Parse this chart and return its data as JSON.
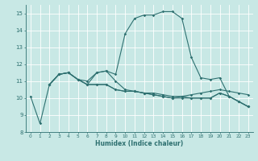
{
  "title": "",
  "xlabel": "Humidex (Indice chaleur)",
  "xlim": [
    -0.5,
    23.5
  ],
  "ylim": [
    8,
    15.5
  ],
  "yticks": [
    8,
    9,
    10,
    11,
    12,
    13,
    14,
    15
  ],
  "xticks": [
    0,
    1,
    2,
    3,
    4,
    5,
    6,
    7,
    8,
    9,
    10,
    11,
    12,
    13,
    14,
    15,
    16,
    17,
    18,
    19,
    20,
    21,
    22,
    23
  ],
  "bg_color": "#c8e8e5",
  "line_color": "#2e7070",
  "grid_color": "#ffffff",
  "series": [
    {
      "x": [
        0,
        1,
        2,
        3,
        4,
        5,
        6,
        7,
        8,
        9,
        10,
        11,
        12,
        13,
        14,
        15,
        16,
        17,
        18,
        19,
        20,
        21,
        22,
        23
      ],
      "y": [
        10.1,
        8.5,
        10.8,
        11.4,
        11.5,
        11.1,
        11.0,
        11.5,
        11.6,
        11.0,
        10.5,
        10.4,
        10.3,
        10.2,
        10.1,
        10.0,
        10.0,
        10.0,
        10.0,
        10.0,
        10.3,
        10.1,
        9.8,
        9.5
      ]
    },
    {
      "x": [
        2,
        3,
        4,
        5,
        6,
        7,
        8,
        9,
        10,
        11,
        12,
        13,
        14,
        15,
        16,
        17,
        18,
        19,
        20,
        21,
        22,
        23
      ],
      "y": [
        10.8,
        11.4,
        11.5,
        11.1,
        10.8,
        11.5,
        11.6,
        11.4,
        13.8,
        14.7,
        14.9,
        14.9,
        15.1,
        15.1,
        14.7,
        12.4,
        11.2,
        11.1,
        11.2,
        10.1,
        9.8,
        9.5
      ]
    },
    {
      "x": [
        2,
        3,
        4,
        5,
        6,
        7,
        8,
        9,
        10,
        11,
        12,
        13,
        14,
        15,
        16,
        17,
        18,
        19,
        20,
        21,
        22,
        23
      ],
      "y": [
        10.8,
        11.4,
        11.5,
        11.1,
        10.8,
        10.8,
        10.8,
        10.5,
        10.4,
        10.4,
        10.3,
        10.3,
        10.2,
        10.1,
        10.1,
        10.0,
        10.0,
        10.0,
        10.3,
        10.1,
        9.8,
        9.5
      ]
    },
    {
      "x": [
        2,
        3,
        4,
        5,
        6,
        7,
        8,
        9,
        10,
        11,
        12,
        13,
        14,
        15,
        16,
        17,
        18,
        19,
        20,
        21,
        22,
        23
      ],
      "y": [
        10.8,
        11.4,
        11.5,
        11.1,
        10.8,
        10.8,
        10.8,
        10.5,
        10.4,
        10.4,
        10.3,
        10.2,
        10.1,
        10.0,
        10.1,
        10.2,
        10.3,
        10.4,
        10.5,
        10.4,
        10.3,
        10.2
      ]
    }
  ]
}
